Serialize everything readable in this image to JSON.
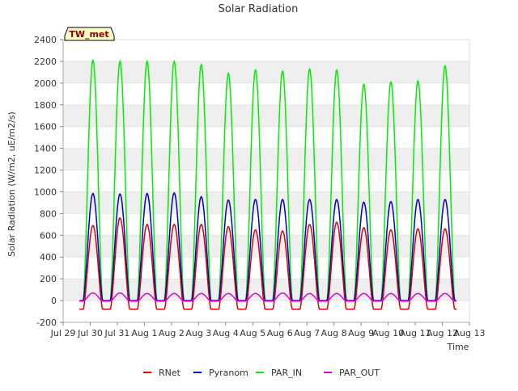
{
  "chart_data": {
    "type": "line",
    "title": "Solar Radiation",
    "ylabel": "Solar Radiation (W/m2, uE/m2/s)",
    "xlabel": "Time",
    "annotation": "TW_met",
    "ylim": [
      -200,
      2400
    ],
    "yticks": [
      -200,
      0,
      200,
      400,
      600,
      800,
      1000,
      1200,
      1400,
      1600,
      1800,
      2000,
      2200,
      2400
    ],
    "xlim": [
      0,
      15
    ],
    "xticks": [
      {
        "x": 0,
        "label": "Jul 29"
      },
      {
        "x": 1,
        "label": "Jul 30"
      },
      {
        "x": 2,
        "label": "Jul 31"
      },
      {
        "x": 3,
        "label": "Aug 1"
      },
      {
        "x": 4,
        "label": "Aug 2"
      },
      {
        "x": 5,
        "label": "Aug 3"
      },
      {
        "x": 6,
        "label": "Aug 4"
      },
      {
        "x": 7,
        "label": "Aug 5"
      },
      {
        "x": 8,
        "label": "Aug 6"
      },
      {
        "x": 9,
        "label": "Aug 7"
      },
      {
        "x": 10,
        "label": "Aug 8"
      },
      {
        "x": 11,
        "label": "Aug 9"
      },
      {
        "x": 12,
        "label": "Aug 10"
      },
      {
        "x": 13,
        "label": "Aug 11"
      },
      {
        "x": 14,
        "label": "Aug 12"
      },
      {
        "x": 15,
        "label": "Aug 13"
      }
    ],
    "grid": "horizontal bands",
    "legend_position": "bottom",
    "days": [
      1.1,
      2.1,
      3.1,
      4.1,
      5.1,
      6.1,
      7.1,
      8.1,
      9.1,
      10.1,
      11.1,
      12.1,
      13.1,
      14.1
    ],
    "series": [
      {
        "name": "RNet",
        "color": "#dd0000",
        "daily_peak": [
          690,
          760,
          700,
          700,
          700,
          680,
          650,
          640,
          700,
          720,
          670,
          650,
          660,
          660
        ],
        "night_value": -80
      },
      {
        "name": "Pyranom",
        "color": "#0000cc",
        "daily_peak": [
          985,
          980,
          985,
          990,
          955,
          925,
          930,
          930,
          930,
          930,
          905,
          910,
          930,
          930
        ],
        "night_value": 0
      },
      {
        "name": "PAR_IN",
        "color": "#00ee00",
        "daily_peak": [
          2210,
          2200,
          2200,
          2200,
          2170,
          2090,
          2120,
          2110,
          2130,
          2120,
          1990,
          2010,
          2020,
          2160
        ],
        "night_value": 0
      },
      {
        "name": "PAR_OUT",
        "color": "#dd00dd",
        "daily_peak": [
          70,
          70,
          65,
          65,
          65,
          65,
          65,
          70,
          65,
          65,
          65,
          65,
          65,
          65
        ],
        "night_value": -5
      }
    ]
  }
}
